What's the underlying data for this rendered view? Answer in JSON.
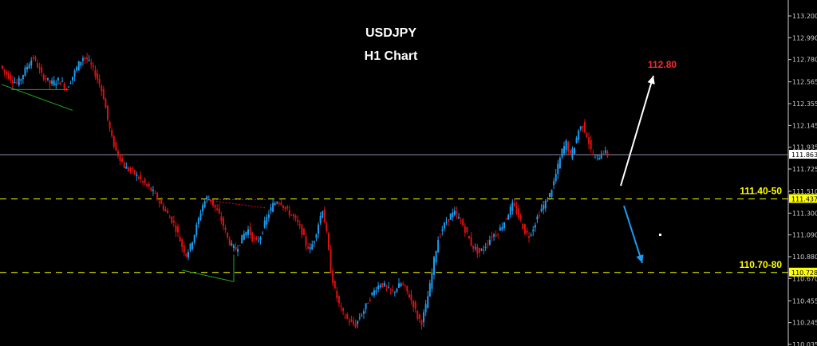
{
  "chart_data": {
    "type": "candlestick",
    "title": "USDJPY",
    "subtitle": "H1 Chart",
    "ylim": [
      110.035,
      113.2
    ],
    "y_ticks": [
      "113.200",
      "112.990",
      "112.780",
      "112.565",
      "112.355",
      "112.145",
      "111.935",
      "111.725",
      "111.510",
      "111.300",
      "111.090",
      "110.880",
      "110.670",
      "110.455",
      "110.245",
      "110.035"
    ],
    "current_price": "111.863",
    "support_levels": [
      {
        "price": "111.437",
        "label": "111.40-50"
      },
      {
        "price": "110.728",
        "label": "110.70-80"
      }
    ],
    "target": "112.80",
    "close_path": [
      112.72,
      112.66,
      112.62,
      112.58,
      112.55,
      112.6,
      112.68,
      112.75,
      112.8,
      112.72,
      112.63,
      112.6,
      112.55,
      112.56,
      112.58,
      112.55,
      112.5,
      112.58,
      112.66,
      112.74,
      112.8,
      112.78,
      112.72,
      112.64,
      112.55,
      112.42,
      112.2,
      112.02,
      111.9,
      111.83,
      111.75,
      111.72,
      111.7,
      111.66,
      111.62,
      111.58,
      111.54,
      111.5,
      111.44,
      111.38,
      111.32,
      111.26,
      111.2,
      111.1,
      110.98,
      110.9,
      110.98,
      111.1,
      111.24,
      111.38,
      111.45,
      111.42,
      111.35,
      111.28,
      111.18,
      111.06,
      110.98,
      110.95,
      111.02,
      111.1,
      111.14,
      111.06,
      111.02,
      111.08,
      111.2,
      111.3,
      111.38,
      111.42,
      111.4,
      111.34,
      111.3,
      111.26,
      111.2,
      111.12,
      111.0,
      110.95,
      111.05,
      111.2,
      111.34,
      111.1,
      110.75,
      110.55,
      110.42,
      110.33,
      110.28,
      110.24,
      110.22,
      110.3,
      110.36,
      110.45,
      110.52,
      110.58,
      110.62,
      110.6,
      110.56,
      110.54,
      110.58,
      110.62,
      110.58,
      110.5,
      110.42,
      110.3,
      110.25,
      110.4,
      110.6,
      110.85,
      111.05,
      111.15,
      111.22,
      111.28,
      111.3,
      111.25,
      111.18,
      111.1,
      111.0,
      110.95,
      110.92,
      110.96,
      111.02,
      111.08,
      111.1,
      111.15,
      111.22,
      111.3,
      111.38,
      111.32,
      111.22,
      111.12,
      111.08,
      111.16,
      111.26,
      111.34,
      111.4,
      111.48,
      111.6,
      111.75,
      111.9,
      111.98,
      111.85,
      111.95,
      112.1,
      112.15,
      112.05,
      111.9,
      111.82,
      111.85,
      111.9,
      111.86
    ]
  },
  "annotations": {
    "arrow_up_color": "#ffffff",
    "arrow_down_color": "#1e9cf0",
    "target_color": "#ff2a2a",
    "level_label_color": "#ffff00",
    "bull_color": "#1e9cf0",
    "bear_color": "#e01010"
  }
}
